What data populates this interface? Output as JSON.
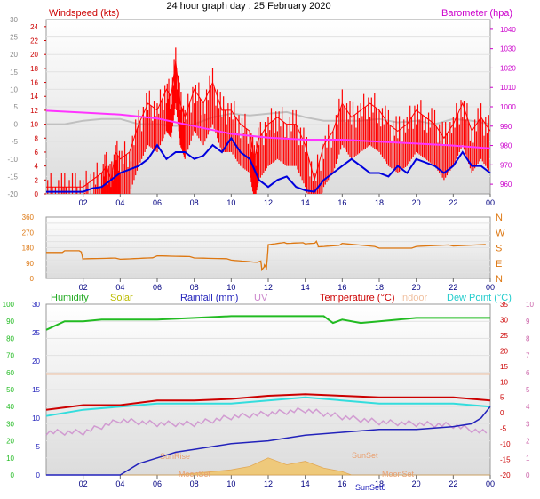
{
  "title": "24 hour graph day : 25 February 2020",
  "colors": {
    "wind": "#ff0000",
    "gust_fill": "#ff0000",
    "wind_avg": "#0000dd",
    "baro": "#ff33ff",
    "baro_axis": "#cc00cc",
    "grey_line": "#c0c0c0",
    "dir": "#dd7711",
    "humidity": "#22bb22",
    "solar": "#bbbb00",
    "rain": "#2222bb",
    "uv": "#cc88cc",
    "temp": "#cc0000",
    "indoor": "#f0c0a0",
    "dew": "#33dddd",
    "left_axis": "#888888",
    "panel_bg": "#f2f2f2"
  },
  "x_ticks": [
    "02",
    "04",
    "06",
    "08",
    "10",
    "12",
    "14",
    "16",
    "18",
    "20",
    "22",
    "00"
  ],
  "panel1": {
    "wind_label": "Windspeed (kts)",
    "baro_label": "Barometer (hpa)",
    "outer_ticks": [
      "30",
      "25",
      "20",
      "15",
      "10",
      "5",
      "0",
      "-5",
      "-10",
      "-15",
      "-20"
    ],
    "wind_ticks": [
      "24",
      "22",
      "20",
      "18",
      "16",
      "14",
      "12",
      "10",
      "8",
      "6",
      "4",
      "2",
      "0"
    ],
    "baro_ticks": [
      "1040",
      "1030",
      "1020",
      "1010",
      "1000",
      "990",
      "980",
      "970",
      "960"
    ]
  },
  "panel2": {
    "deg_ticks": [
      "360",
      "270",
      "180",
      "90",
      "0"
    ],
    "compass": [
      "N",
      "W",
      "S",
      "E",
      "N"
    ]
  },
  "panel3": {
    "labels": {
      "humidity": "Humidity",
      "solar": "Solar",
      "rain": "Rainfall (mm)",
      "uv": "UV",
      "temp": "Temperature (°C)",
      "indoor": "Indoor",
      "dew": "Dew Point (°C)"
    },
    "hum_ticks": [
      "100",
      "90",
      "80",
      "70",
      "60",
      "50",
      "40",
      "30",
      "20",
      "10",
      "0"
    ],
    "rain_ticks": [
      "30",
      "25",
      "20",
      "15",
      "10",
      "5",
      "0"
    ],
    "temp_ticks": [
      "35",
      "30",
      "25",
      "20",
      "15",
      "10",
      "5",
      "0",
      "-5",
      "-10",
      "-15",
      "-20"
    ],
    "uv_ticks": [
      "10",
      "9",
      "8",
      "7",
      "6",
      "5",
      "4",
      "3",
      "2",
      "1",
      "0"
    ],
    "annotations": {
      "sunrise": "SunRise",
      "sunset": "SunSet",
      "moonset1": "MoonSet",
      "moonset2": "MoonSet",
      "sunset_axis": "SunSet8"
    }
  },
  "chart_data": [
    {
      "type": "line",
      "x_unit": "hour of day",
      "xlim": [
        0,
        24
      ],
      "ylim_wind": [
        0,
        25
      ],
      "ylim_baro": [
        955,
        1045
      ],
      "series": [
        {
          "name": "Windspeed (kts)",
          "axis": "wind",
          "style": "gust",
          "x": [
            0,
            0.5,
            1,
            1.5,
            2,
            2.5,
            3,
            3.25,
            3.5,
            3.75,
            4,
            4.5,
            5,
            5.5,
            6,
            6.5,
            6.75,
            7,
            7.25,
            7.5,
            8,
            8.5,
            9,
            9.5,
            10,
            10.5,
            11,
            11.25,
            11.5,
            12,
            12.5,
            13,
            13.5,
            14,
            14.5,
            15,
            15.5,
            16,
            16.5,
            17,
            17.5,
            18,
            18.5,
            19,
            19.5,
            20,
            20.5,
            21,
            21.5,
            22,
            22.5,
            23,
            23.5,
            24
          ],
          "y": [
            1,
            1,
            1,
            1,
            1,
            2,
            3,
            4,
            2,
            6,
            5,
            6,
            10,
            13,
            12,
            15,
            14,
            19,
            13,
            11,
            15,
            13,
            16,
            12,
            12,
            10,
            9,
            5,
            8,
            10,
            11,
            10,
            10,
            7,
            2,
            7,
            9,
            13,
            11,
            12,
            13,
            12,
            10,
            9,
            10,
            12,
            11,
            10,
            8,
            10,
            13,
            9,
            11,
            9
          ]
        },
        {
          "name": "Average wind",
          "axis": "wind",
          "x": [
            0,
            0.5,
            1,
            1.5,
            2,
            2.5,
            3,
            3.5,
            4,
            4.5,
            5,
            5.5,
            6,
            6.5,
            7,
            7.5,
            8,
            8.5,
            9,
            9.5,
            10,
            10.5,
            11,
            11.5,
            12,
            12.5,
            13,
            13.5,
            14,
            14.5,
            15,
            15.5,
            16,
            16.5,
            17,
            17.5,
            18,
            18.5,
            19,
            19.5,
            20,
            20.5,
            21,
            21.5,
            22,
            22.5,
            23,
            23.5,
            24
          ],
          "y": [
            0.3,
            0.3,
            0.3,
            0.3,
            0.3,
            0.8,
            1,
            2,
            3,
            3.5,
            4,
            5,
            7,
            5,
            6,
            6,
            5,
            5.5,
            7,
            6,
            8,
            6,
            5,
            2,
            1,
            2,
            2.5,
            1,
            0.5,
            0.3,
            2,
            3,
            4,
            5,
            4,
            3,
            3,
            2.5,
            4,
            3,
            5,
            4.5,
            4,
            3,
            4,
            6,
            4,
            4,
            3
          ]
        },
        {
          "name": "Barometer (hpa)",
          "axis": "baro",
          "x": [
            0,
            2,
            4,
            6,
            8,
            10,
            12,
            14,
            16,
            18,
            20,
            22,
            24
          ],
          "y": [
            998,
            997,
            996,
            994,
            990,
            986,
            984,
            983,
            983,
            982,
            981,
            980,
            978.5
          ]
        },
        {
          "name": "grey",
          "axis": "outer",
          "x": [
            0,
            1,
            2,
            3,
            4,
            5,
            6,
            7,
            8,
            9,
            10,
            11,
            12,
            13,
            14,
            15,
            16,
            17,
            18,
            19,
            20,
            21,
            22,
            23,
            24
          ],
          "y": [
            0,
            0,
            1,
            1.5,
            1.5,
            0,
            0,
            -0.5,
            0,
            2,
            3,
            2.5,
            3,
            3.5,
            2,
            1,
            1,
            1,
            1.5,
            0.5,
            1,
            0,
            1.5,
            1,
            0
          ]
        }
      ]
    },
    {
      "type": "line",
      "x_unit": "hour of day",
      "xlim": [
        0,
        24
      ],
      "ylim": [
        0,
        360
      ],
      "series": [
        {
          "name": "Wind direction",
          "x": [
            0,
            1,
            1.9,
            2,
            4,
            6,
            8,
            10,
            11.6,
            11.65,
            11.8,
            11.9,
            12,
            13,
            14,
            14.6,
            14.7,
            16,
            18,
            20,
            22,
            24
          ],
          "y": [
            160,
            160,
            160,
            110,
            115,
            125,
            120,
            115,
            100,
            55,
            75,
            55,
            190,
            205,
            210,
            215,
            190,
            200,
            180,
            180,
            190,
            200
          ]
        }
      ]
    },
    {
      "type": "line",
      "x_unit": "hour of day",
      "xlim": [
        0,
        24
      ],
      "ylim_humidity": [
        0,
        100
      ],
      "ylim_rain": [
        0,
        30
      ],
      "ylim_temp": [
        -20,
        35
      ],
      "ylim_uv": [
        0,
        10
      ],
      "series": [
        {
          "name": "Humidity",
          "axis": "humidity",
          "x": [
            0,
            1,
            2,
            3,
            4,
            6,
            8,
            10,
            12,
            14,
            15,
            15.5,
            16,
            17,
            18,
            20,
            22,
            24
          ],
          "y": [
            85,
            90,
            90,
            91,
            91,
            91,
            92,
            93,
            93,
            93,
            93,
            89,
            91,
            89,
            90,
            92,
            92,
            92
          ]
        },
        {
          "name": "Rainfall (mm)",
          "axis": "rain",
          "x": [
            0,
            4,
            4.5,
            5,
            6,
            7,
            8,
            9,
            10,
            12,
            14,
            16,
            18,
            20,
            22,
            23,
            23.5,
            24
          ],
          "y": [
            0,
            0,
            1,
            2,
            3,
            4,
            4.5,
            5,
            5.5,
            6,
            7,
            7.5,
            8,
            8,
            8.5,
            9,
            10,
            12
          ]
        },
        {
          "name": "Temperature (°C)",
          "axis": "temp",
          "x": [
            0,
            2,
            4,
            6,
            8,
            10,
            12,
            14,
            16,
            18,
            20,
            22,
            24
          ],
          "y": [
            1,
            2.5,
            2.5,
            4,
            4,
            4.5,
            5.5,
            6,
            5.5,
            5,
            5,
            5,
            4
          ]
        },
        {
          "name": "Indoor",
          "axis": "temp",
          "x": [
            0,
            24
          ],
          "y": [
            12.5,
            12.5
          ]
        },
        {
          "name": "Dew Point (°C)",
          "axis": "temp",
          "x": [
            0,
            2,
            4,
            6,
            8,
            10,
            12,
            14,
            16,
            18,
            20,
            22,
            24
          ],
          "y": [
            -1,
            1,
            2,
            3,
            3,
            3,
            4,
            5,
            4,
            3,
            3,
            3,
            2
          ]
        },
        {
          "name": "UV",
          "axis": "uv",
          "x": [
            0,
            2,
            4,
            6,
            8,
            10,
            12,
            14,
            16,
            18,
            20,
            22,
            24
          ],
          "y": [
            2.5,
            2.5,
            3.2,
            3,
            3,
            3.4,
            3.6,
            3.8,
            3.4,
            3.1,
            3,
            2.9,
            2.4
          ]
        },
        {
          "name": "Solar",
          "axis": "humidity",
          "style": "area",
          "x": [
            0,
            7,
            8,
            9,
            10,
            11,
            12,
            13,
            14,
            15,
            16,
            16.5,
            17,
            24
          ],
          "y": [
            0,
            0,
            1,
            2,
            3,
            5,
            10,
            6,
            8,
            4,
            2,
            0,
            0,
            0
          ]
        }
      ]
    }
  ]
}
